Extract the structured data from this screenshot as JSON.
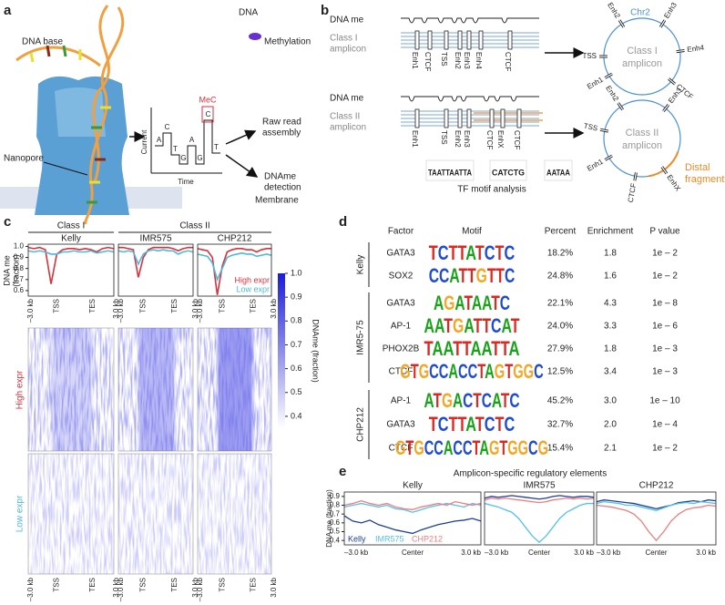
{
  "panel_a": {
    "label": "a",
    "dna": "DNA",
    "dna_base": "DNA base",
    "methylation": "Methylation",
    "mec": "MeC",
    "signal_bases": [
      "A",
      "C",
      "T",
      "G",
      "A",
      "G",
      "C",
      "T"
    ],
    "y_axis": "Current",
    "x_axis": "Time",
    "raw_read": [
      "Raw read",
      "assembly"
    ],
    "detection": [
      "DNAme",
      "detection"
    ],
    "nanopore": "Nanopore",
    "membrane": "Membrane"
  },
  "panel_b": {
    "label": "b",
    "class1": {
      "dna_me": "DNA me",
      "class": "Class I",
      "amplicon": "amplicon",
      "elements": [
        "Enh1",
        "CTCF",
        "TSS",
        "Enh2",
        "Enh3",
        "Enh4",
        "CTCF"
      ],
      "circle": {
        "chr": "Chr2",
        "class": "Class I",
        "amplicon": "amplicon",
        "elements": [
          "TSS",
          "Enh2",
          "Enh3",
          "Enh4",
          "CTCF",
          "Enh1"
        ]
      }
    },
    "class2": {
      "dna_me": "DNA me",
      "class": "Class II",
      "amplicon": "amplicon",
      "elements": [
        "Enh1",
        "TSS",
        "Enh2",
        "Enh3",
        "CTCF",
        "EnhX",
        "CTCF"
      ],
      "circle": {
        "class": "Class II",
        "amplicon": "amplicon",
        "elements": [
          "TSS",
          "Enh2",
          "Enh3",
          "Enh1",
          "CTCF",
          "EnhX"
        ],
        "distal": [
          "Distal",
          "fragment"
        ]
      }
    },
    "mini_logos": [
      "TAATTAATTA",
      "CATCTG",
      "AATAA"
    ],
    "motif_analysis": "TF motif analysis"
  },
  "panel_c": {
    "label": "c",
    "groups": [
      "Class I",
      "Class II"
    ],
    "cell_lines": [
      "Kelly",
      "IMR575",
      "CHP212"
    ],
    "y_label": [
      "DNA me",
      "(fraction)"
    ],
    "ylim": [
      0.55,
      1.02
    ],
    "yticks": [
      {
        "value": 1,
        "label": "1.0"
      },
      0.9,
      0.8,
      0.7,
      0.6
    ],
    "x_labels": [
      "–3.0 kb",
      "TSS",
      "TES",
      "3.0 kb"
    ],
    "series": [
      {
        "name": "High expr",
        "color": "#d9303c",
        "values": [
          [
            0.99,
            0.98,
            0.99,
            0.97,
            0.66,
            0.93,
            0.97,
            0.98,
            0.98,
            0.97,
            0.98,
            0.97,
            0.95,
            0.98,
            0.99,
            0.98
          ],
          [
            0.99,
            0.99,
            0.98,
            0.97,
            0.72,
            0.9,
            0.97,
            0.99,
            0.99,
            0.99,
            0.99,
            0.98,
            0.96,
            0.98,
            0.99,
            0.99
          ],
          [
            0.98,
            0.97,
            0.96,
            0.9,
            0.56,
            0.82,
            0.95,
            0.97,
            0.98,
            0.98,
            0.97,
            0.97,
            0.95,
            0.97,
            0.98,
            0.98
          ]
        ]
      },
      {
        "name": "Low expr",
        "color": "#4cb9da",
        "values": [
          [
            0.96,
            0.95,
            0.96,
            0.95,
            0.93,
            0.93,
            0.95,
            0.95,
            0.96,
            0.95,
            0.95,
            0.96,
            0.94,
            0.95,
            0.96,
            0.95
          ],
          [
            0.96,
            0.95,
            0.96,
            0.95,
            0.84,
            0.93,
            0.96,
            0.97,
            0.96,
            0.97,
            0.96,
            0.96,
            0.93,
            0.95,
            0.96,
            0.95
          ],
          [
            0.93,
            0.92,
            0.91,
            0.85,
            0.7,
            0.8,
            0.9,
            0.92,
            0.93,
            0.94,
            0.93,
            0.93,
            0.91,
            0.92,
            0.93,
            0.92
          ]
        ]
      }
    ],
    "heatmap": {
      "rows": [
        "High expr",
        "Low expr"
      ],
      "colorbar_label": "DNAme (fraction)",
      "colorbar_lim": [
        0.35,
        1.0
      ],
      "colorbar_ticks": [
        {
          "value": 1,
          "label": "1.0"
        },
        0.9,
        0.8,
        0.7,
        0.6,
        0.5,
        0.4
      ]
    }
  },
  "panel_d": {
    "label": "d",
    "headers": [
      "Factor",
      "Motif",
      "Percent",
      "Enrichment",
      "P value"
    ],
    "groups": [
      {
        "name": "Kelly",
        "rows": [
          [
            "GATA3",
            "TCTTATCTC",
            "18.2%",
            "1.8",
            "1e – 2"
          ],
          [
            "SOX2",
            "CCATTGTTC",
            "24.8%",
            "1.6",
            "1e – 2"
          ]
        ]
      },
      {
        "name": "IMR5-75",
        "rows": [
          [
            "GATA3",
            "AGATAATC",
            "22.1%",
            "4.3",
            "1e – 8"
          ],
          [
            "AP-1",
            "AATGATTCAT",
            "24.0%",
            "3.3",
            "1e – 6"
          ],
          [
            "PHOX2B",
            "TAATTAATTA",
            "27.9%",
            "1.8",
            "1e – 3"
          ],
          [
            "CTCF",
            "GTGCCACCTAGTGGC",
            "12.5%",
            "3.4",
            "1e – 3"
          ]
        ]
      },
      {
        "name": "CHP212",
        "rows": [
          [
            "AP-1",
            "ATGACTCATC",
            "45.2%",
            "3.0",
            "1e – 10"
          ],
          [
            "GATA3",
            "TCTTATCTC",
            "32.7%",
            "2.0",
            "1e – 4"
          ],
          [
            "CTCF",
            "GTGCCACCTAGTGGCG",
            "15.4%",
            "2.1",
            "1e – 2"
          ]
        ]
      }
    ]
  },
  "panel_e": {
    "label": "e",
    "title": "Amplicon-specific regulatory elements",
    "cell_lines": [
      "Kelly",
      "IMR575",
      "CHP212"
    ],
    "y_label": "DNA me (fraction)",
    "ylim": [
      0.35,
      0.95
    ],
    "yticks": [
      0.9,
      0.8,
      0.7,
      0.6,
      0.5,
      0.4
    ],
    "x_labels": [
      "–3.0 kb",
      "Center",
      "3.0 kb"
    ],
    "series": [
      {
        "name": "Kelly",
        "color": "#1d3f94",
        "values": [
          [
            0.68,
            0.62,
            0.6,
            0.63,
            0.58,
            0.55,
            0.52,
            0.5,
            0.48,
            0.52,
            0.55,
            0.58,
            0.6,
            0.62,
            0.63,
            0.65,
            0.62
          ],
          [
            0.88,
            0.9,
            0.89,
            0.9,
            0.91,
            0.9,
            0.89,
            0.88,
            0.87,
            0.88,
            0.9,
            0.91,
            0.9,
            0.89,
            0.9,
            0.9,
            0.89
          ],
          [
            0.84,
            0.86,
            0.85,
            0.84,
            0.83,
            0.82,
            0.8,
            0.78,
            0.76,
            0.78,
            0.8,
            0.83,
            0.84,
            0.85,
            0.84,
            0.86,
            0.85
          ]
        ]
      },
      {
        "name": "IMR575",
        "color": "#52c2ea",
        "values": [
          [
            0.78,
            0.8,
            0.82,
            0.8,
            0.78,
            0.8,
            0.76,
            0.75,
            0.72,
            0.75,
            0.78,
            0.8,
            0.82,
            0.8,
            0.78,
            0.82,
            0.8
          ],
          [
            0.82,
            0.8,
            0.78,
            0.75,
            0.72,
            0.65,
            0.55,
            0.45,
            0.38,
            0.45,
            0.55,
            0.65,
            0.72,
            0.76,
            0.8,
            0.82,
            0.82
          ],
          [
            0.82,
            0.84,
            0.83,
            0.82,
            0.8,
            0.8,
            0.78,
            0.76,
            0.74,
            0.77,
            0.8,
            0.82,
            0.83,
            0.82,
            0.84,
            0.83,
            0.82
          ]
        ]
      },
      {
        "name": "CHP212",
        "color": "#f07b7b",
        "values": [
          [
            0.8,
            0.82,
            0.85,
            0.82,
            0.8,
            0.82,
            0.78,
            0.76,
            0.75,
            0.78,
            0.8,
            0.82,
            0.8,
            0.84,
            0.82,
            0.8,
            0.82
          ],
          [
            0.86,
            0.88,
            0.87,
            0.88,
            0.87,
            0.86,
            0.85,
            0.84,
            0.83,
            0.84,
            0.86,
            0.87,
            0.88,
            0.87,
            0.88,
            0.87,
            0.88
          ],
          [
            0.8,
            0.79,
            0.78,
            0.76,
            0.74,
            0.7,
            0.62,
            0.5,
            0.4,
            0.5,
            0.62,
            0.7,
            0.75,
            0.77,
            0.78,
            0.8,
            0.79
          ]
        ]
      }
    ]
  }
}
